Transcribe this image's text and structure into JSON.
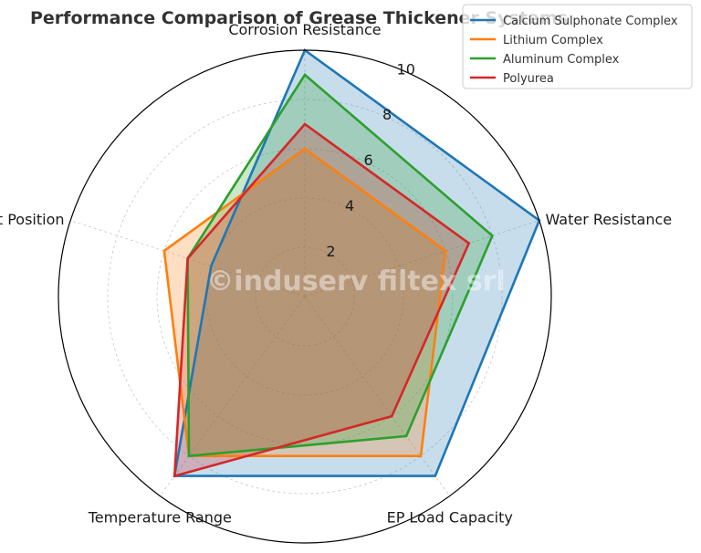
{
  "chart_data": {
    "type": "radar",
    "title": "Performance Comparison of Grease Thickener Systems",
    "categories": [
      "Corrosion Resistance",
      "Water Resistance",
      "EP Load Capacity",
      "Temperature Range",
      "Cost Position"
    ],
    "rlim": [
      0,
      10
    ],
    "rticks": [
      2,
      4,
      6,
      8,
      10
    ],
    "grid": true,
    "legend_position": "top-right",
    "series": [
      {
        "name": "Calcium Sulphonate Complex",
        "values": [
          10,
          10,
          9,
          9,
          4
        ],
        "color": "#1f77b4"
      },
      {
        "name": "Lithium Complex",
        "values": [
          6,
          6,
          8,
          8,
          6
        ],
        "color": "#ff7f0e"
      },
      {
        "name": "Aluminum Complex",
        "values": [
          9,
          8,
          7,
          8,
          5
        ],
        "color": "#2ca02c"
      },
      {
        "name": "Polyurea",
        "values": [
          7,
          7,
          6,
          9,
          5
        ],
        "color": "#d62728"
      }
    ],
    "watermark": "©induserv filtex srl"
  }
}
